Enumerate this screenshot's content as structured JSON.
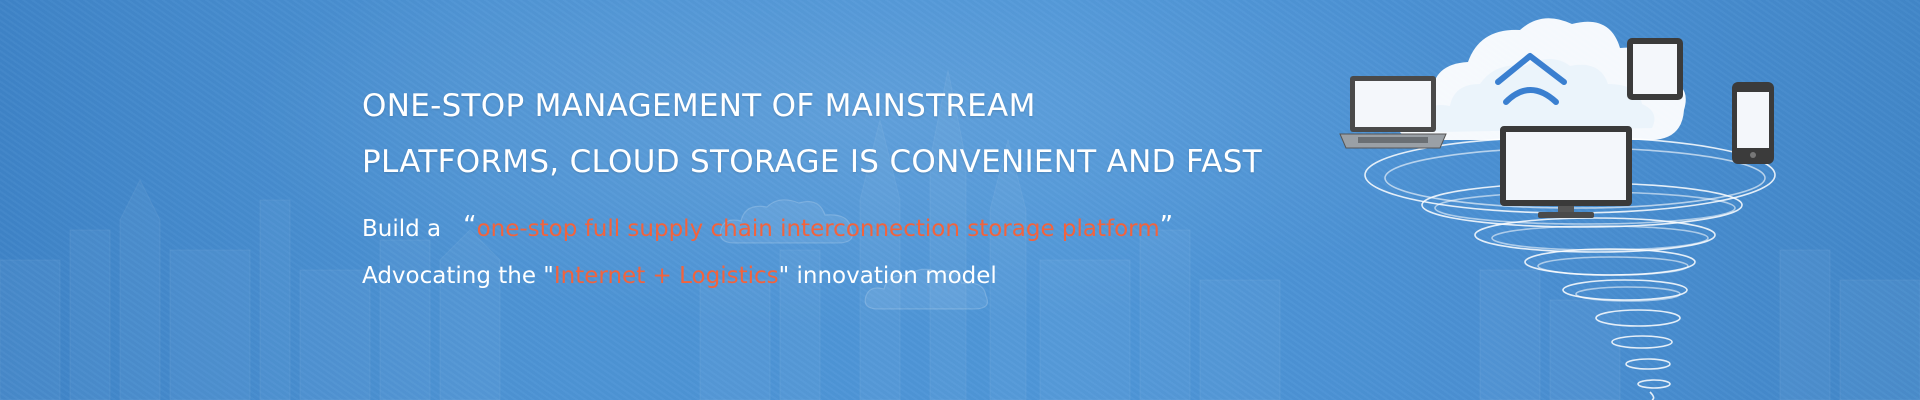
{
  "headline": {
    "line1": "ONE-STOP MANAGEMENT OF MAINSTREAM",
    "line2": "PLATFORMS, CLOUD STORAGE IS CONVENIENT AND FAST"
  },
  "subline1": {
    "prefix": "Build a",
    "open_quote": "“",
    "highlight": "one-stop full supply chain interconnection storage platform",
    "close_quote": "”"
  },
  "subline2": {
    "prefix": "Advocating the \"",
    "highlight": "Internet + Logistics",
    "suffix": "\" innovation model"
  },
  "colors": {
    "background": "#4b91d4",
    "highlight": "#f2633d",
    "text": "#ffffff"
  },
  "illustration": {
    "icons": [
      "laptop-icon",
      "cloud-icon",
      "tablet-icon",
      "smartphone-icon",
      "monitor-icon",
      "tornado-swirl"
    ]
  }
}
